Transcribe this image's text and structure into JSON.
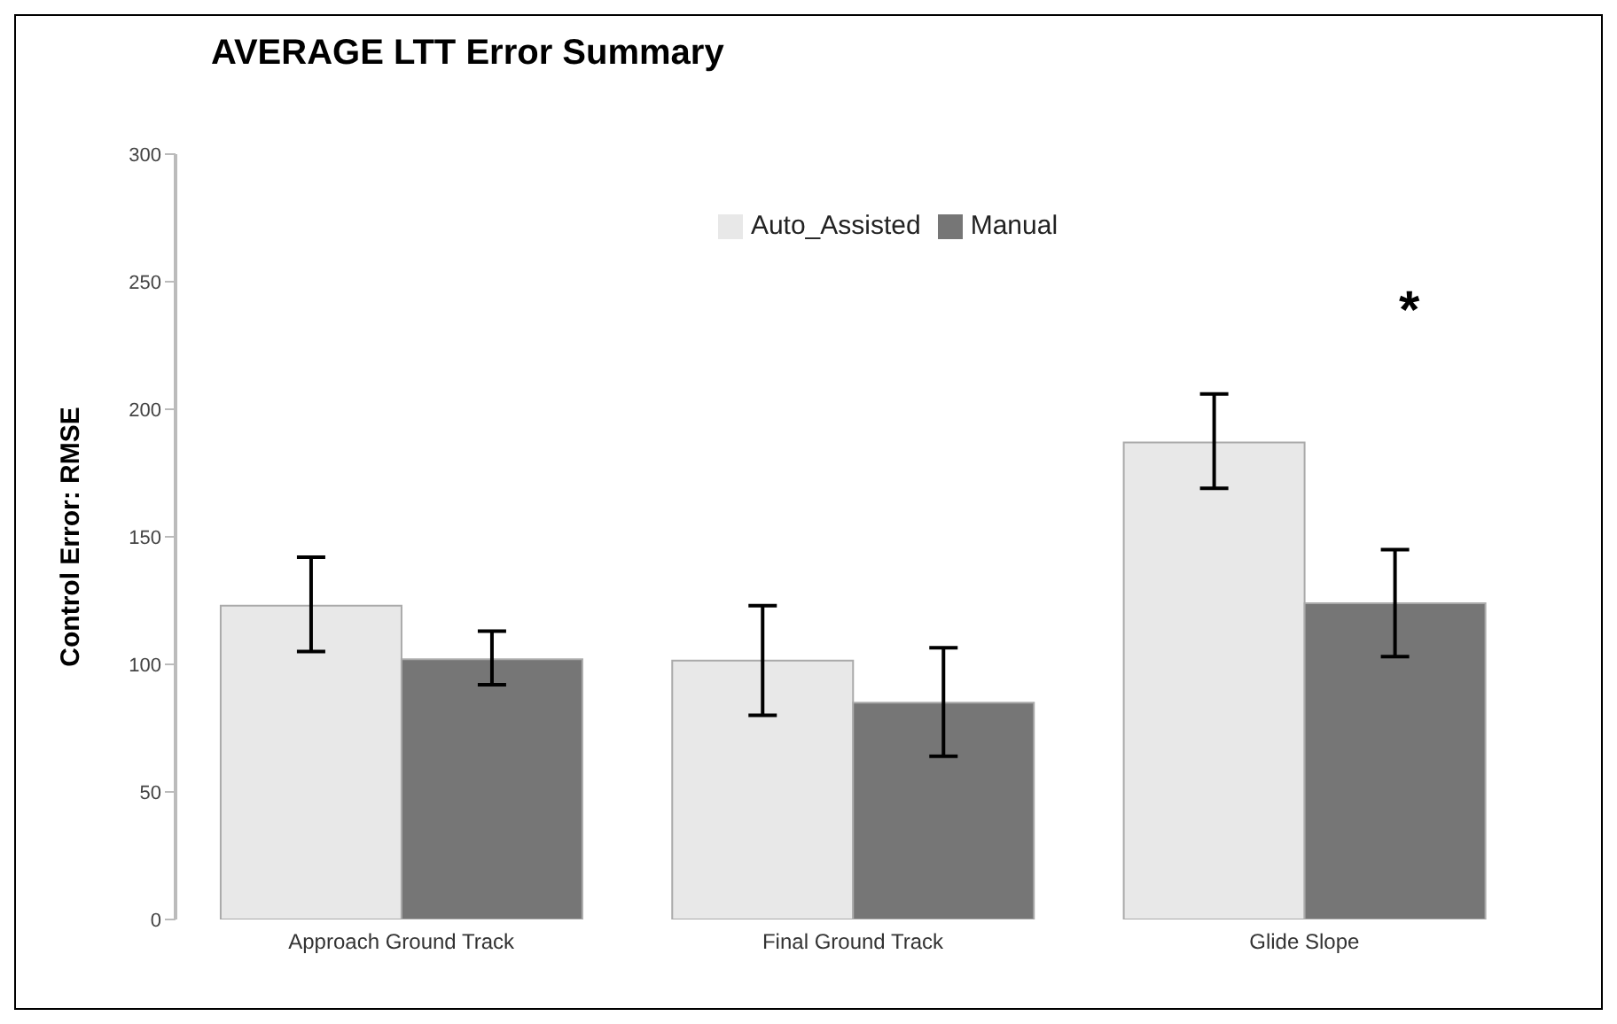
{
  "chart_data": {
    "type": "bar",
    "title": "AVERAGE LTT Error Summary",
    "ylabel": "Control Error: RMSE",
    "categories": [
      "Approach Ground Track",
      "Final Ground  Track",
      "Glide Slope"
    ],
    "series": [
      {
        "name": "Auto_Assisted",
        "color": "#e8e8e8",
        "values": [
          123,
          101.5,
          187
        ],
        "errors": [
          [
            105,
            142
          ],
          [
            80,
            123
          ],
          [
            169,
            206
          ]
        ]
      },
      {
        "name": "Manual",
        "color": "#767676",
        "values": [
          102,
          85,
          124
        ],
        "errors": [
          [
            92,
            113
          ],
          [
            64,
            106.5
          ],
          [
            103,
            145
          ]
        ]
      }
    ],
    "ylim": [
      0,
      300
    ],
    "yticks": [
      0,
      50,
      100,
      150,
      200,
      250,
      300
    ],
    "grid": false,
    "legend": "top",
    "annotations": [
      "*"
    ]
  }
}
